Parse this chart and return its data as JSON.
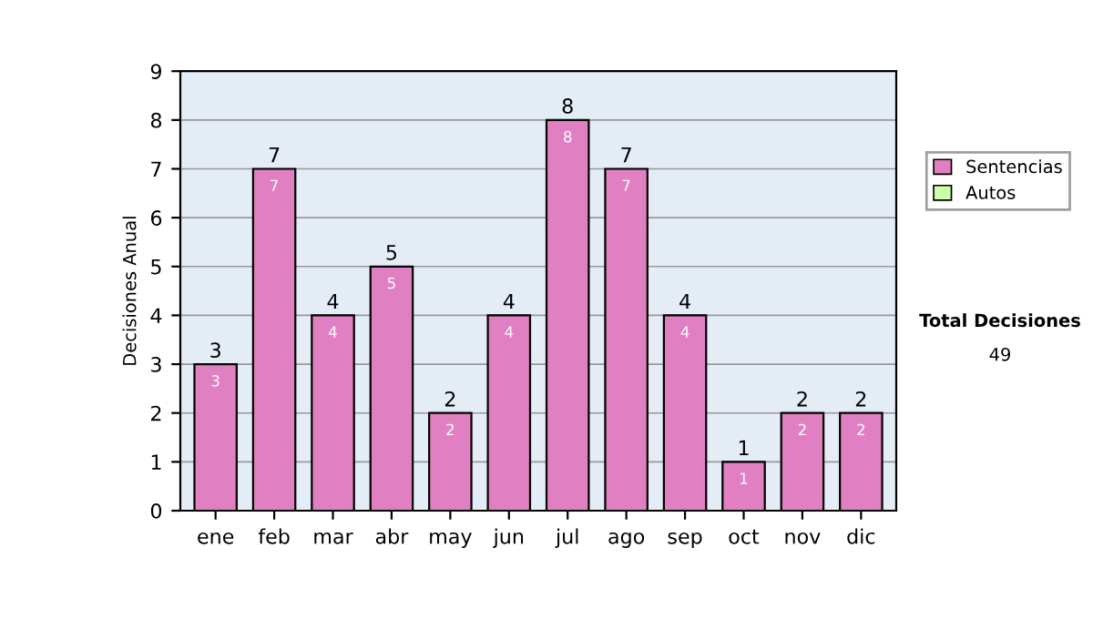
{
  "chart_data": {
    "type": "bar",
    "stacked": true,
    "ylabel": "Decisiones Anual",
    "categories": [
      "ene",
      "feb",
      "mar",
      "abr",
      "may",
      "jun",
      "jul",
      "ago",
      "sep",
      "oct",
      "nov",
      "dic"
    ],
    "series": [
      {
        "name": "Sentencias",
        "color": "#e17fc3",
        "values": [
          3,
          7,
          4,
          5,
          2,
          4,
          8,
          7,
          4,
          1,
          2,
          2
        ],
        "value_labels": [
          "3",
          "7",
          "4",
          "5",
          "2",
          "4",
          "8",
          "7",
          "4",
          "1",
          "2",
          "2"
        ]
      },
      {
        "name": "Autos",
        "color": "#ccffaa",
        "values": [
          0,
          0,
          0,
          0,
          0,
          0,
          0,
          0,
          0,
          0,
          0,
          0
        ]
      }
    ],
    "totals": [
      "3",
      "7",
      "4",
      "5",
      "2",
      "4",
      "8",
      "7",
      "4",
      "1",
      "2",
      "2"
    ],
    "ylim": [
      0,
      9
    ],
    "yticks": [
      0,
      1,
      2,
      3,
      4,
      5,
      6,
      7,
      8,
      9
    ],
    "grid": "y",
    "legend": "right",
    "annotations": [
      "Total Decisiones",
      "49"
    ]
  }
}
